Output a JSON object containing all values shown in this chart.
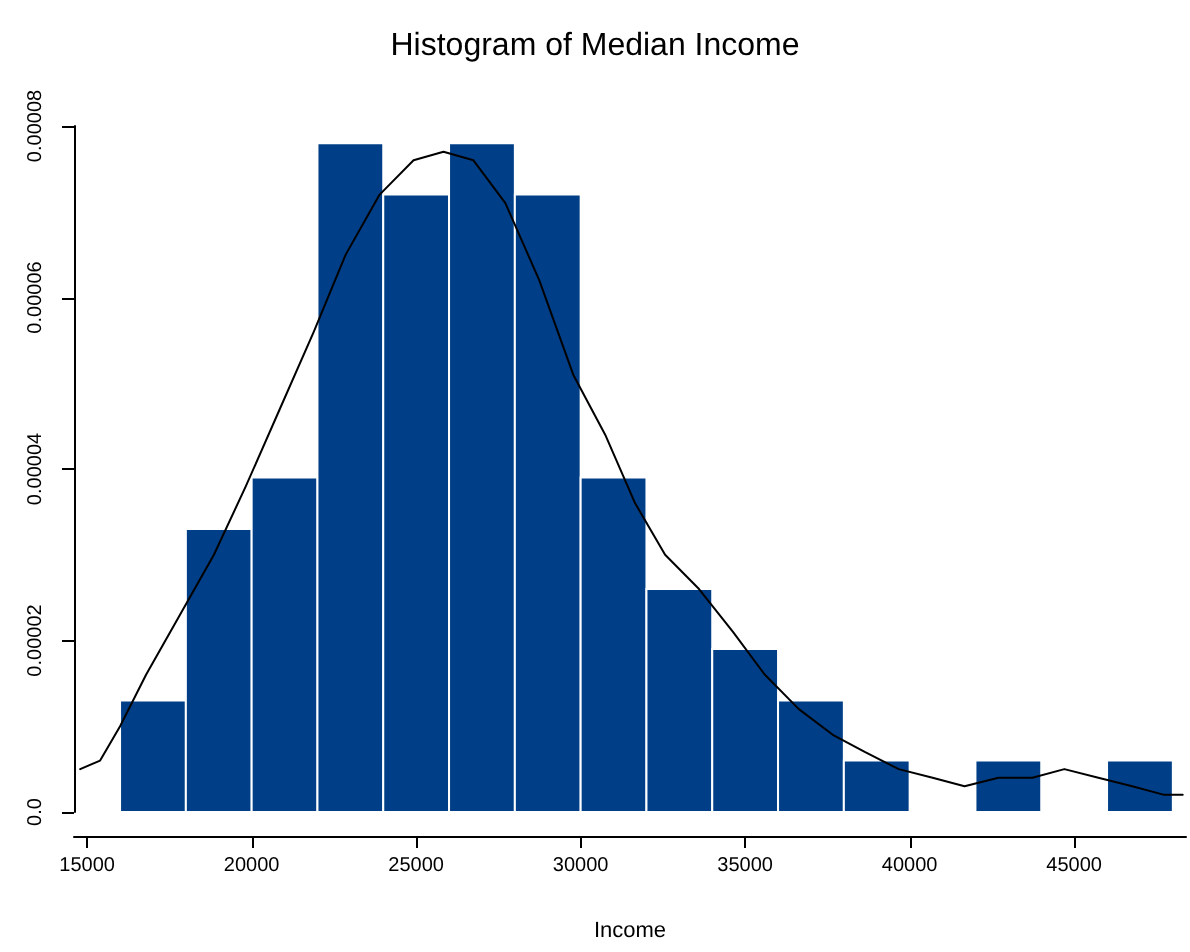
{
  "chart_data": {
    "type": "histogram",
    "title": "Histogram of Median Income",
    "xlabel": "Income",
    "bins": [
      16000,
      18000,
      20000,
      22000,
      24000,
      26000,
      28000,
      30000,
      32000,
      34000,
      36000,
      38000,
      40000,
      42000,
      44000,
      46000,
      48000
    ],
    "series": [
      {
        "color": "#003f87",
        "values": [
          1.3e-05,
          3.3e-05,
          3.9e-05,
          7.8e-05,
          7.2e-05,
          7.8e-05,
          7.2e-05,
          3.9e-05,
          2.6e-05,
          1.9e-05,
          1.3e-05,
          6e-06,
          0,
          6e-06,
          0,
          6e-06
        ]
      },
      {
        "type": "line",
        "color": "#000000",
        "x": [
          14788,
          15394,
          16001,
          16790,
          17822,
          18853,
          19824,
          20856,
          21887,
          22858,
          23890,
          24921,
          25831,
          26742,
          27712,
          28744,
          29775,
          30746,
          31656,
          32567,
          33598,
          34630,
          35601,
          36632,
          37664,
          38635,
          39666,
          40698,
          41669,
          42700,
          43732,
          44703,
          45735,
          46766,
          47737,
          48300
        ],
        "values": [
          5e-06,
          6e-06,
          1e-05,
          1.6e-05,
          2.3e-05,
          3e-05,
          3.8e-05,
          4.7e-05,
          5.6e-05,
          6.5e-05,
          7.2e-05,
          7.6e-05,
          7.7e-05,
          7.6e-05,
          7.1e-05,
          6.2e-05,
          5.1e-05,
          4.4e-05,
          3.6e-05,
          3e-05,
          2.6e-05,
          2.1e-05,
          1.6e-05,
          1.2e-05,
          9e-06,
          7e-06,
          5e-06,
          4e-06,
          3e-06,
          4e-06,
          4e-06,
          5e-06,
          4e-06,
          3e-06,
          2e-06,
          2e-06
        ]
      }
    ],
    "xlim": [
      14600,
      48400
    ],
    "xticks": [
      15000,
      20000,
      25000,
      30000,
      35000,
      40000,
      45000
    ],
    "ylim": [
      0,
      8e-05
    ],
    "yticks": [
      {
        "value": 0,
        "label": "0.0"
      },
      {
        "value": 2e-05,
        "label": "0.00002"
      },
      {
        "value": 4e-05,
        "label": "0.00004"
      },
      {
        "value": 6e-05,
        "label": "0.00006"
      },
      {
        "value": 8e-05,
        "label": "0.00008"
      }
    ],
    "marker": "none",
    "line_style": "solid"
  }
}
